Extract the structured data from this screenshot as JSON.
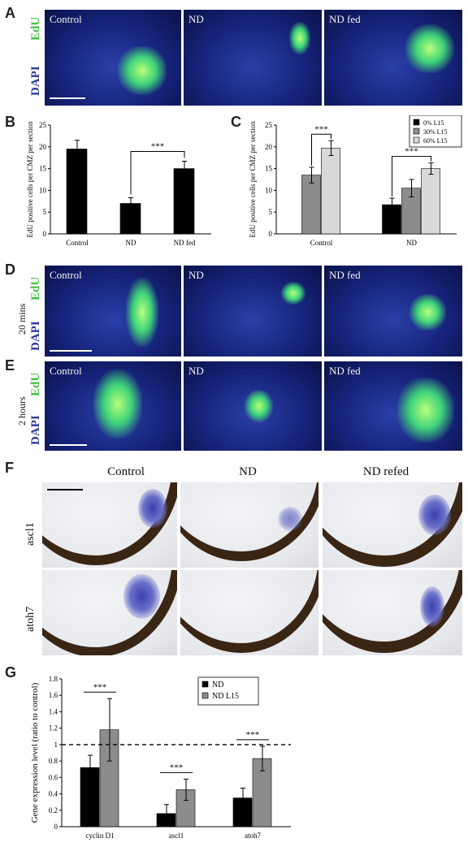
{
  "panel_letters": {
    "a": "A",
    "b": "B",
    "c": "C",
    "d": "D",
    "e": "E",
    "f": "F",
    "g": "G"
  },
  "stain": {
    "edu": "EdU",
    "dapi": "DAPI",
    "edu_color": "#3fbf3f",
    "dapi_color": "#2a3a9a"
  },
  "conditions": {
    "control": "Control",
    "nd": "ND",
    "nd_fed": "ND fed",
    "nd_refed": "ND refed"
  },
  "time_labels": {
    "d": "20 mins",
    "e": "2 hours"
  },
  "genes": {
    "ascl1": "ascl1",
    "atoh7": "atoh7"
  },
  "chart_data": [
    {
      "id": "B",
      "type": "bar",
      "categories": [
        "Control",
        "ND",
        "ND fed"
      ],
      "values": [
        19.5,
        7.0,
        15.0
      ],
      "errors": [
        2.0,
        1.3,
        1.7
      ],
      "ylabel": "EdU positive cells per CMZ per section",
      "ylim": [
        0,
        25
      ],
      "yticks": [
        "0",
        "5",
        "10",
        "15",
        "20",
        "25"
      ],
      "annotations": [
        {
          "from": 1,
          "to": 2,
          "label": "***"
        }
      ]
    },
    {
      "id": "C",
      "type": "bar",
      "categories": [
        "Control",
        "ND"
      ],
      "series": [
        {
          "name": "0% L15",
          "color": "#000000",
          "values": [
            null,
            6.7
          ],
          "errors": [
            null,
            1.5
          ]
        },
        {
          "name": "30% L15",
          "color": "#8c8c8c",
          "values": [
            13.5,
            10.5
          ],
          "errors": [
            1.8,
            2.0
          ]
        },
        {
          "name": "60% L15",
          "color": "#d8d8d8",
          "values": [
            19.7,
            15.0
          ],
          "errors": [
            1.7,
            1.3
          ]
        }
      ],
      "ylabel": "EdU positive cells per CMZ per section",
      "ylim": [
        0,
        25
      ],
      "yticks": [
        "0",
        "5",
        "10",
        "15",
        "20",
        "25"
      ],
      "annotations": [
        {
          "group": 0,
          "label": "***"
        },
        {
          "group": 1,
          "label": "***"
        }
      ],
      "legend": "top-right"
    },
    {
      "id": "G",
      "type": "bar",
      "categories": [
        "cyclin D1",
        "ascl1",
        "atoh7"
      ],
      "series": [
        {
          "name": "ND",
          "color": "#000000",
          "values": [
            0.72,
            0.16,
            0.35
          ],
          "errors": [
            0.15,
            0.11,
            0.12
          ]
        },
        {
          "name": "ND L15",
          "color": "#8c8c8c",
          "values": [
            1.18,
            0.45,
            0.83
          ],
          "errors": [
            0.38,
            0.13,
            0.15
          ]
        }
      ],
      "ylabel": "Gene expression level (ratio to control)",
      "ylim": [
        0,
        1.8
      ],
      "yticks": [
        "0",
        "0.2",
        "0.4",
        "0.6",
        "0.8",
        "1",
        "1.2",
        "1.4",
        "1.6",
        "1.8"
      ],
      "reference_line": 1,
      "annotations": [
        {
          "group": 0,
          "label": "***"
        },
        {
          "group": 1,
          "label": "***"
        },
        {
          "group": 2,
          "label": "***"
        }
      ],
      "legend": "top-right"
    }
  ]
}
